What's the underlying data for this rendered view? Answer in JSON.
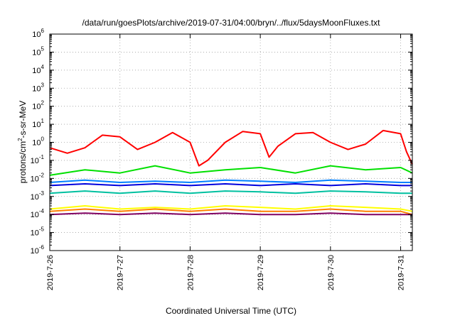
{
  "chart_data": {
    "type": "line",
    "title": "/data/run/goesPlots/archive/2019-07-31/04:00/bryn/../flux/5daysMoonFluxes.txt",
    "xlabel": "Coordinated Universal Time (UTC)",
    "ylabel": "protons/cm²-s-sr-MeV",
    "ylabel_base": "protons/cm",
    "ylabel_sup": "2",
    "ylabel_rest": "-s-sr-MeV",
    "yscale": "log",
    "ylim": [
      1e-06,
      1000000.0
    ],
    "xlim": [
      "2019-07-26T00:00",
      "2019-07-31T04:00"
    ],
    "grid": true,
    "y_ticks": [
      {
        "exp": "-6",
        "value": 1e-06
      },
      {
        "exp": "-5",
        "value": 1e-05
      },
      {
        "exp": "-4",
        "value": 0.0001
      },
      {
        "exp": "-3",
        "value": 0.001
      },
      {
        "exp": "-2",
        "value": 0.01
      },
      {
        "exp": "-1",
        "value": 0.1
      },
      {
        "exp": "0",
        "value": 1
      },
      {
        "exp": "1",
        "value": 10
      },
      {
        "exp": "2",
        "value": 100
      },
      {
        "exp": "3",
        "value": 1000
      },
      {
        "exp": "4",
        "value": 10000
      },
      {
        "exp": "5",
        "value": 100000
      },
      {
        "exp": "6",
        "value": 1000000
      }
    ],
    "y_tick_base": "10",
    "x_ticks": [
      "2019-7-26",
      "2019-7-27",
      "2019-7-28",
      "2019-7-29",
      "2019-7-30",
      "2019-7-31"
    ],
    "series": [
      {
        "color": "#ff0000",
        "x": [
          "2019-07-26T00:00",
          "2019-07-26T06:00",
          "2019-07-26T12:00",
          "2019-07-26T18:00",
          "2019-07-27T00:00",
          "2019-07-27T06:00",
          "2019-07-27T12:00",
          "2019-07-27T18:00",
          "2019-07-28T00:00",
          "2019-07-28T03:00",
          "2019-07-28T06:00",
          "2019-07-28T12:00",
          "2019-07-28T18:00",
          "2019-07-29T00:00",
          "2019-07-29T03:00",
          "2019-07-29T06:00",
          "2019-07-29T12:00",
          "2019-07-29T18:00",
          "2019-07-30T00:00",
          "2019-07-30T06:00",
          "2019-07-30T12:00",
          "2019-07-30T18:00",
          "2019-07-31T00:00",
          "2019-07-31T02:00",
          "2019-07-31T04:00"
        ],
        "y": [
          0.5,
          0.25,
          0.5,
          2.5,
          2.0,
          0.4,
          1.0,
          3.5,
          1.0,
          0.05,
          0.1,
          1.0,
          4.0,
          3.0,
          0.15,
          0.6,
          3.0,
          3.5,
          1.0,
          0.4,
          0.8,
          4.5,
          3.0,
          0.3,
          0.06
        ]
      },
      {
        "color": "#00e000",
        "x": [
          "2019-07-26T00:00",
          "2019-07-26T12:00",
          "2019-07-27T00:00",
          "2019-07-27T12:00",
          "2019-07-28T00:00",
          "2019-07-28T12:00",
          "2019-07-29T00:00",
          "2019-07-29T12:00",
          "2019-07-30T00:00",
          "2019-07-30T12:00",
          "2019-07-31T00:00",
          "2019-07-31T04:00"
        ],
        "y": [
          0.015,
          0.03,
          0.02,
          0.05,
          0.02,
          0.03,
          0.04,
          0.02,
          0.05,
          0.03,
          0.04,
          0.02
        ]
      },
      {
        "color": "#0080ff",
        "x": [
          "2019-07-26T00:00",
          "2019-07-26T12:00",
          "2019-07-27T00:00",
          "2019-07-27T12:00",
          "2019-07-28T00:00",
          "2019-07-28T12:00",
          "2019-07-29T00:00",
          "2019-07-29T12:00",
          "2019-07-30T00:00",
          "2019-07-30T12:00",
          "2019-07-31T00:00",
          "2019-07-31T04:00"
        ],
        "y": [
          0.006,
          0.008,
          0.006,
          0.007,
          0.006,
          0.008,
          0.007,
          0.006,
          0.008,
          0.007,
          0.006,
          0.006
        ]
      },
      {
        "color": "#0000dd",
        "x": [
          "2019-07-26T00:00",
          "2019-07-26T12:00",
          "2019-07-27T00:00",
          "2019-07-27T12:00",
          "2019-07-28T00:00",
          "2019-07-28T12:00",
          "2019-07-29T00:00",
          "2019-07-29T12:00",
          "2019-07-30T00:00",
          "2019-07-30T12:00",
          "2019-07-31T00:00",
          "2019-07-31T04:00"
        ],
        "y": [
          0.004,
          0.005,
          0.004,
          0.005,
          0.004,
          0.005,
          0.004,
          0.005,
          0.004,
          0.005,
          0.004,
          0.004
        ]
      },
      {
        "color": "#00c0a0",
        "x": [
          "2019-07-26T00:00",
          "2019-07-26T12:00",
          "2019-07-27T00:00",
          "2019-07-27T12:00",
          "2019-07-28T00:00",
          "2019-07-28T12:00",
          "2019-07-29T00:00",
          "2019-07-29T12:00",
          "2019-07-30T00:00",
          "2019-07-30T12:00",
          "2019-07-31T00:00",
          "2019-07-31T04:00"
        ],
        "y": [
          0.0015,
          0.002,
          0.0015,
          0.002,
          0.0015,
          0.002,
          0.0018,
          0.0015,
          0.002,
          0.0018,
          0.0015,
          0.0015
        ]
      },
      {
        "color": "#ffff00",
        "x": [
          "2019-07-26T00:00",
          "2019-07-26T12:00",
          "2019-07-27T00:00",
          "2019-07-27T12:00",
          "2019-07-28T00:00",
          "2019-07-28T12:00",
          "2019-07-29T00:00",
          "2019-07-29T12:00",
          "2019-07-30T00:00",
          "2019-07-30T12:00",
          "2019-07-31T00:00",
          "2019-07-31T04:00"
        ],
        "y": [
          0.0002,
          0.0003,
          0.0002,
          0.00025,
          0.0002,
          0.0003,
          0.00025,
          0.0002,
          0.0003,
          0.00025,
          0.0002,
          0.00015
        ]
      },
      {
        "color": "#ff8000",
        "x": [
          "2019-07-26T00:00",
          "2019-07-26T12:00",
          "2019-07-27T00:00",
          "2019-07-27T12:00",
          "2019-07-28T00:00",
          "2019-07-28T12:00",
          "2019-07-29T00:00",
          "2019-07-29T12:00",
          "2019-07-30T00:00",
          "2019-07-30T12:00",
          "2019-07-31T00:00",
          "2019-07-31T04:00"
        ],
        "y": [
          0.00015,
          0.0002,
          0.00015,
          0.0002,
          0.00015,
          0.0002,
          0.00015,
          0.00015,
          0.0002,
          0.00015,
          0.00015,
          0.0001
        ]
      },
      {
        "color": "#800060",
        "x": [
          "2019-07-26T00:00",
          "2019-07-26T12:00",
          "2019-07-27T00:00",
          "2019-07-27T12:00",
          "2019-07-28T00:00",
          "2019-07-28T12:00",
          "2019-07-29T00:00",
          "2019-07-29T12:00",
          "2019-07-30T00:00",
          "2019-07-30T12:00",
          "2019-07-31T00:00",
          "2019-07-31T04:00"
        ],
        "y": [
          0.0001,
          0.00012,
          0.0001,
          0.00012,
          0.0001,
          0.00012,
          0.0001,
          0.0001,
          0.00012,
          0.0001,
          0.0001,
          0.0001
        ]
      }
    ]
  }
}
